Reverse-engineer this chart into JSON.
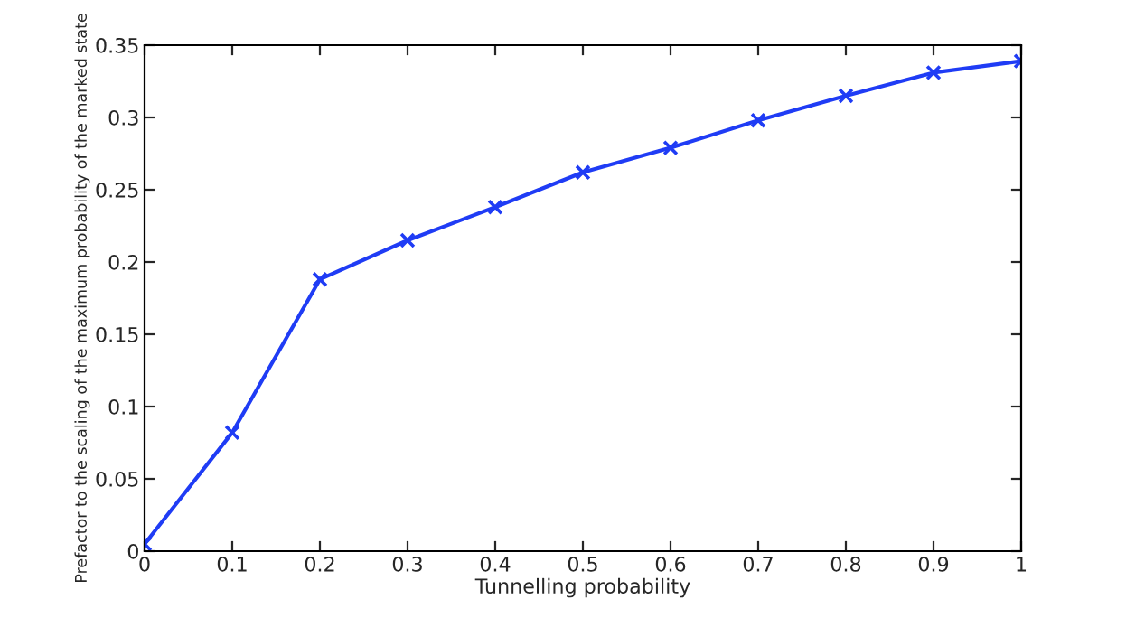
{
  "chart_data": {
    "type": "line",
    "xlabel": "Tunnelling probability",
    "ylabel": "Prefactor to the scaling of the maximum probability of the marked state",
    "x": [
      0,
      0.1,
      0.2,
      0.3,
      0.4,
      0.5,
      0.6,
      0.7,
      0.8,
      0.9,
      1
    ],
    "series": [
      {
        "color": "#1f3cf5",
        "values": [
          0.005,
          0.082,
          0.188,
          0.215,
          0.238,
          0.262,
          0.279,
          0.298,
          0.315,
          0.331,
          0.339
        ]
      }
    ],
    "xlim": [
      0,
      1
    ],
    "xticks": [
      0,
      0.1,
      0.2,
      0.3,
      0.4,
      0.5,
      0.6,
      0.7,
      0.8,
      0.9,
      1
    ],
    "ylim": [
      0,
      0.35
    ],
    "yticks": [
      0,
      0.05,
      0.1,
      0.15,
      0.2,
      0.25,
      0.3,
      0.35
    ],
    "marker": "cross",
    "line_style": "solid",
    "grid": false,
    "legend": false
  }
}
